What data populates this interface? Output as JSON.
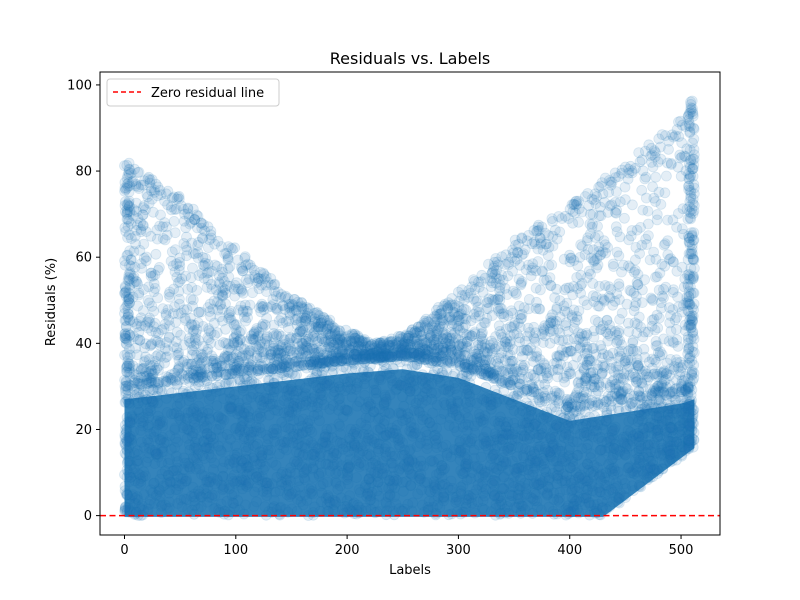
{
  "chart_data": {
    "type": "scatter",
    "title": "Residuals vs. Labels",
    "xlabel": "Labels",
    "ylabel": "Residuals (%)",
    "xlim": [
      -22,
      535
    ],
    "ylim": [
      -4.5,
      103
    ],
    "xticks": [
      0,
      100,
      200,
      300,
      400,
      500
    ],
    "yticks": [
      0,
      20,
      40,
      60,
      80,
      100
    ],
    "grid": false,
    "legend": {
      "placement": "upper-left",
      "entries": [
        "Zero residual line"
      ]
    },
    "series": [
      {
        "kind": "scatter",
        "color": "#1f77b4",
        "alpha": 0.12,
        "marker": "circle",
        "x_range": [
          0,
          512
        ],
        "n_points_approx": 40000,
        "envelope_upper": {
          "x": [
            0,
            50,
            100,
            150,
            200,
            225,
            250,
            300,
            350,
            400,
            450,
            500,
            512
          ],
          "y": [
            83,
            74,
            62,
            51,
            43,
            40,
            42,
            52,
            64,
            72,
            82,
            92,
            98
          ]
        },
        "dense_band_upper": {
          "x": [
            0,
            100,
            200,
            250,
            300,
            350,
            400,
            450,
            500,
            512
          ],
          "y": [
            30,
            33,
            36,
            37,
            35,
            30,
            25,
            27,
            29,
            30
          ]
        },
        "lower_bound": {
          "x": [
            0,
            430,
            512
          ],
          "y": [
            0,
            0,
            16
          ]
        }
      },
      {
        "kind": "hline",
        "label": "Zero residual line",
        "y": 0,
        "color": "#ff0000",
        "linestyle": "dashed"
      }
    ]
  }
}
